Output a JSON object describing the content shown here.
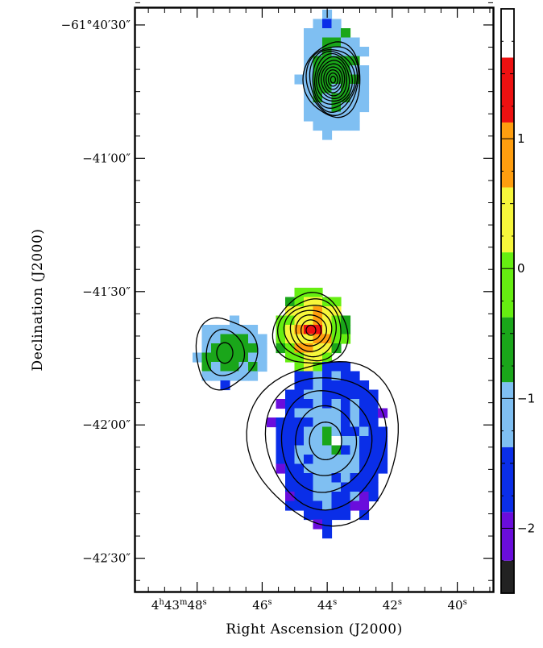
{
  "chart_data": {
    "type": "heatmap",
    "title": "",
    "xlabel": "Right Ascension (J2000)",
    "ylabel": "Declination (J2000)",
    "x_ticks": [
      {
        "ra_s": 48,
        "label": "4h43m48s"
      },
      {
        "ra_s": 46,
        "label": "46s"
      },
      {
        "ra_s": 44,
        "label": "44s"
      },
      {
        "ra_s": 42,
        "label": "42s"
      },
      {
        "ra_s": 40,
        "label": "40s"
      }
    ],
    "y_ticks": [
      {
        "dec_arcsec": 2430,
        "label": "−61°40′30″"
      },
      {
        "dec_arcsec": 2460,
        "label": "−41′00″"
      },
      {
        "dec_arcsec": 2490,
        "label": "−41′30″"
      },
      {
        "dec_arcsec": 2520,
        "label": "−42′00″"
      },
      {
        "dec_arcsec": 2550,
        "label": "−42′30″"
      }
    ],
    "x_range_ra_s": [
      49.9,
      38.9
    ],
    "y_range_dec_arcsec": [
      2426.2,
      2557.5
    ],
    "colorbar": {
      "range": [
        -2.5,
        2.0
      ],
      "tick_labels": [
        {
          "value": 1,
          "label": "1"
        },
        {
          "value": 0,
          "label": "0"
        },
        {
          "value": -1,
          "label": "−1"
        },
        {
          "value": -2,
          "label": "−2"
        }
      ],
      "bins": [
        {
          "from": -2.5,
          "to": -2.25,
          "color": "#222222"
        },
        {
          "from": -2.25,
          "to": -1.875,
          "color": "#6a0ddc"
        },
        {
          "from": -1.875,
          "to": -1.375,
          "color": "#0a2ee8"
        },
        {
          "from": -1.375,
          "to": -0.875,
          "color": "#7fbff2"
        },
        {
          "from": -0.875,
          "to": -0.375,
          "color": "#1aa61a"
        },
        {
          "from": -0.375,
          "to": 0.125,
          "color": "#66ee11"
        },
        {
          "from": 0.125,
          "to": 0.625,
          "color": "#f6f63b"
        },
        {
          "from": 0.625,
          "to": 1.125,
          "color": "#ff9e0f"
        },
        {
          "from": 1.125,
          "to": 1.625,
          "color": "#ee1111"
        },
        {
          "from": 1.625,
          "to": 2.0,
          "color": "#ffffff"
        }
      ]
    },
    "regions": [
      {
        "name": "north-core",
        "center": [
          43.82,
          2442.0
        ],
        "rx_s": 1.05,
        "ry_arcsec": 13.5,
        "core_value": -0.6,
        "edge_value": -1.2
      },
      {
        "name": "middle-core",
        "center": [
          44.5,
          2498.6
        ],
        "rx_s": 1.05,
        "ry_arcsec": 10.5,
        "core_value": 1.1,
        "edge_value": -0.5
      },
      {
        "name": "west-lobe",
        "center": [
          46.9,
          2503.7
        ],
        "rx_s": 1.15,
        "ry_arcsec": 7.0,
        "core_value": -0.5,
        "edge_value": -1.3
      },
      {
        "name": "south-core",
        "center": [
          43.9,
          2523.8
        ],
        "rx_s": 1.75,
        "ry_arcsec": 19.0,
        "core_value": -1.0,
        "edge_value": -1.8
      }
    ],
    "contours": [
      {
        "name": "north",
        "center": [
          43.82,
          2442.3
        ],
        "levels": 12
      },
      {
        "name": "middle",
        "center": [
          44.5,
          2498.7
        ],
        "levels": 7
      },
      {
        "name": "west",
        "center": [
          47.15,
          2503.8
        ],
        "levels": 3
      },
      {
        "name": "south",
        "center": [
          44.05,
          2523.6
        ],
        "levels": 5
      }
    ]
  }
}
